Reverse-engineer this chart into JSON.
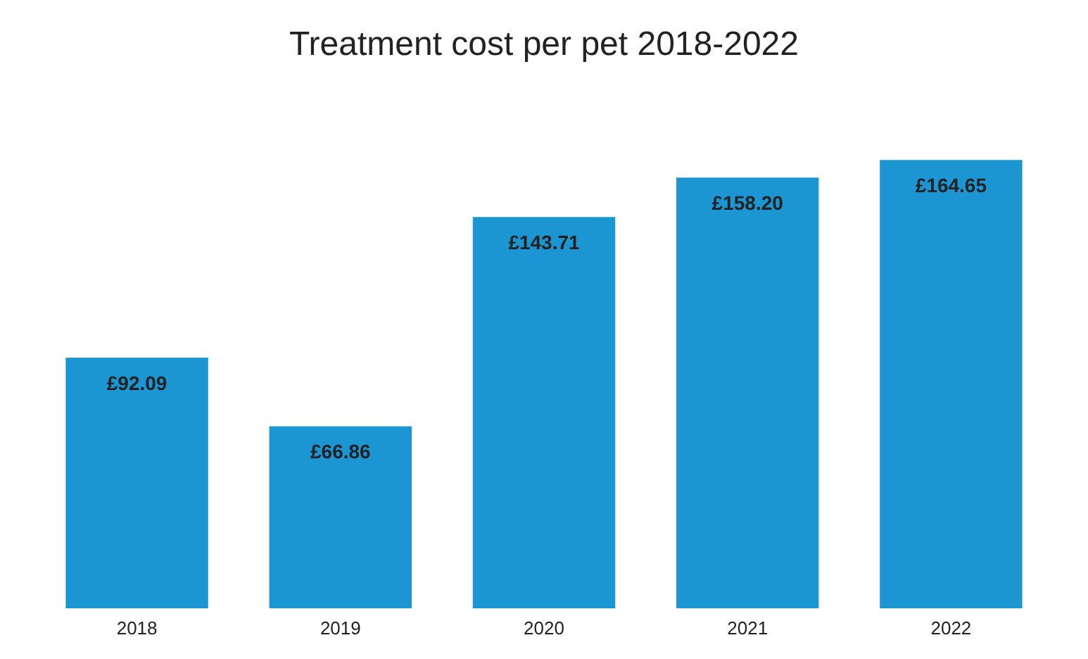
{
  "chart_data": {
    "type": "bar",
    "title": "Treatment cost per pet 2018-2022",
    "categories": [
      "2018",
      "2019",
      "2020",
      "2021",
      "2022"
    ],
    "values": [
      92.09,
      66.86,
      143.71,
      158.2,
      164.65
    ],
    "value_labels": [
      "£92.09",
      "£66.86",
      "£143.71",
      "£158.20",
      "£164.65"
    ],
    "color": "#1b96d3",
    "grid": false
  }
}
